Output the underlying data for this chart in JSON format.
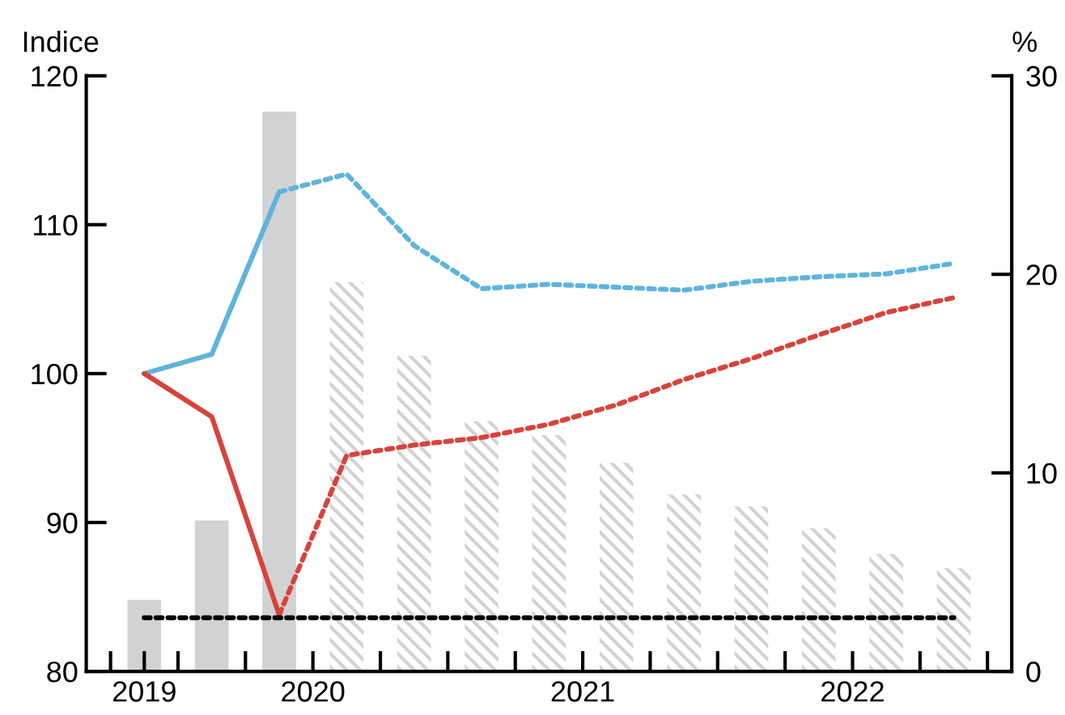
{
  "chart_data": {
    "type": "line",
    "ylabel": "Indice",
    "y2label": "%",
    "xlim": [
      2019.16,
      2022.59
    ],
    "xticks": [
      {
        "value": 2019.25,
        "label": null
      },
      {
        "value": 2019.375,
        "label": "2019"
      },
      {
        "value": 2019.5,
        "label": null
      },
      {
        "value": 2019.75,
        "label": null
      },
      {
        "value": 2020,
        "label": "2020"
      },
      {
        "value": 2020.25,
        "label": null
      },
      {
        "value": 2020.5,
        "label": null
      },
      {
        "value": 2020.75,
        "label": null
      },
      {
        "value": 2021,
        "label": "2021"
      },
      {
        "value": 2021.25,
        "label": null
      },
      {
        "value": 2021.5,
        "label": null
      },
      {
        "value": 2021.75,
        "label": null
      },
      {
        "value": 2022,
        "label": "2022"
      },
      {
        "value": 2022.25,
        "label": null
      },
      {
        "value": 2022.5,
        "label": null
      }
    ],
    "ylim": [
      80,
      120
    ],
    "yticks": [
      80,
      90,
      100,
      110,
      120
    ],
    "y2lim": [
      0,
      30
    ],
    "y2ticks": [
      0,
      10,
      20,
      30
    ],
    "grid": false,
    "legend": false,
    "series": [
      {
        "type": "bar",
        "axis": "y2",
        "color": "#d1d2d4",
        "x": [
          2019.375,
          2019.625,
          2019.875
        ],
        "values": [
          3.6,
          7.6,
          28.2
        ]
      },
      {
        "type": "bar",
        "axis": "y2",
        "color": "#d1d2d4",
        "x": [
          2020.125,
          2020.375,
          2020.625,
          2020.875,
          2021.125,
          2021.375,
          2021.625,
          2021.875,
          2022.125,
          2022.375
        ],
        "values": [
          19.6,
          15.9,
          12.6,
          11.9,
          10.5,
          8.9,
          8.3,
          7.2,
          5.9,
          5.2
        ]
      },
      {
        "color": "#5fb4dc",
        "line_style": "solid",
        "x": [
          2019.375,
          2019.625,
          2019.875
        ],
        "values": [
          100,
          101.3,
          112.2
        ]
      },
      {
        "color": "#5fb4dc",
        "line_style": "dotted",
        "x": [
          2019.875,
          2020.125,
          2020.375,
          2020.625,
          2020.875,
          2021.125,
          2021.375,
          2021.625,
          2021.875,
          2022.125,
          2022.375
        ],
        "values": [
          112.2,
          113.4,
          108.6,
          105.7,
          106.0,
          105.8,
          105.6,
          106.2,
          106.5,
          106.7,
          107.4
        ]
      },
      {
        "color": "#d7433b",
        "line_style": "solid",
        "x": [
          2019.375,
          2019.625,
          2019.875
        ],
        "values": [
          100,
          97.1,
          83.8
        ]
      },
      {
        "color": "#d7433b",
        "line_style": "dotted",
        "x": [
          2019.875,
          2020.125,
          2020.375,
          2020.625,
          2020.875,
          2021.125,
          2021.375,
          2021.625,
          2021.875,
          2022.125,
          2022.375
        ],
        "values": [
          83.8,
          94.5,
          95.2,
          95.7,
          96.6,
          97.9,
          99.6,
          101.0,
          102.6,
          104.1,
          105.1
        ]
      },
      {
        "color": "#000000",
        "line_style": "dotted",
        "x": [
          2019.375,
          2022.375
        ],
        "values": [
          83.6,
          83.6
        ]
      }
    ]
  }
}
